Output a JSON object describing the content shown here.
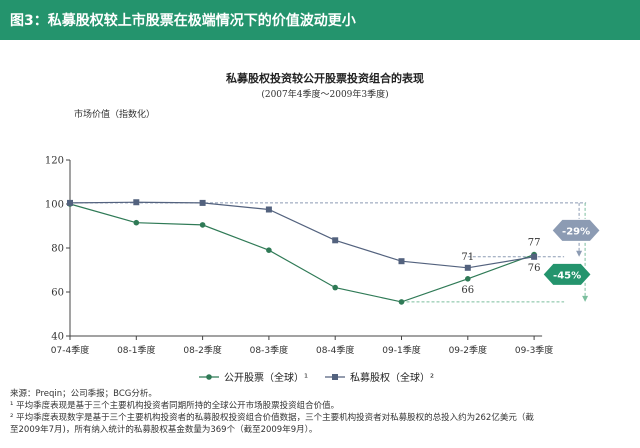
{
  "header": {
    "title": "图3：私募股权较上市股票在极端情况下的价值波动更小"
  },
  "colors": {
    "header_bg": "#24946d",
    "public_line": "#2f7a56",
    "pe_line": "#53627e",
    "badge_pe": "#8c9bb3",
    "badge_public": "#24946d"
  },
  "chart_data": {
    "type": "line",
    "title": "私募股权投资较公开股票投资组合的表现",
    "subtitle": "(2007年4季度～2009年3季度)",
    "ylabel": "市场价值（指数化）",
    "xlabel": "",
    "categories": [
      "07-4季度",
      "08-1季度",
      "08-2季度",
      "08-3季度",
      "08-4季度",
      "09-1季度",
      "09-2季度",
      "09-3季度"
    ],
    "ylim": [
      40,
      120
    ],
    "yticks": [
      "40",
      "60",
      "80",
      "100",
      "120"
    ],
    "series": [
      {
        "name": "公开股票（全球）¹",
        "values": [
          100,
          91.5,
          90.5,
          79,
          62,
          55.5,
          66,
          77
        ],
        "labels": [
          "",
          "",
          "",
          "",
          "",
          "",
          "66",
          "77"
        ]
      },
      {
        "name": "私募股权（全球）²",
        "values": [
          100.5,
          100.8,
          100.5,
          97.5,
          83.5,
          74,
          71,
          76
        ],
        "labels": [
          "",
          "",
          "",
          "",
          "",
          "",
          "71",
          "76"
        ]
      }
    ],
    "annotations": [
      {
        "text": "-29%",
        "series": "私募股权（全球）²"
      },
      {
        "text": "-45%",
        "series": "公开股票（全球）¹"
      }
    ],
    "legend_position": "bottom",
    "grid": false
  },
  "footnotes": {
    "source": "来源：Preqin；公司季报；BCG分析。",
    "note1": "¹ 平均季度表现是基于三个主要机构投资者同期所持的全球公开市场股票投资组合价值。",
    "note2": "² 平均季度表现数字是基于三个主要机构投资者的私募股权投资组合价值数据，三个主要机构投资者对私募股权的总投入约为262亿美元（截",
    "note3": "至2009年7月)，所有纳入统计的私募股权基金数量为369个（截至2009年9月）。"
  }
}
